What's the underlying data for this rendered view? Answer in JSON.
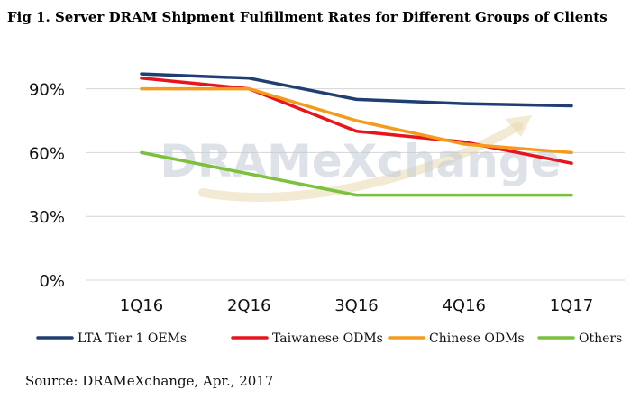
{
  "figure": {
    "title": "Fig 1. Server DRAM Shipment Fulfillment Rates for Different Groups of Clients",
    "source": "Source: DRAMeXchange, Apr., 2017",
    "watermark": "DRAMeXchange"
  },
  "chart_data": {
    "type": "line",
    "title": "Fig 1. Server DRAM Shipment Fulfillment Rates for Different Groups of Clients",
    "xlabel": "",
    "ylabel": "",
    "categories": [
      "1Q16",
      "2Q16",
      "3Q16",
      "4Q16",
      "1Q17"
    ],
    "ylim": [
      0,
      100
    ],
    "yticks": [
      0,
      30,
      60,
      90
    ],
    "ytick_labels": [
      "0%",
      "30%",
      "60%",
      "90%"
    ],
    "grid": true,
    "legend_position": "bottom",
    "series": [
      {
        "name": "LTA Tier 1 OEMs",
        "color": "#1f3f73",
        "values": [
          97,
          95,
          85,
          83,
          82
        ]
      },
      {
        "name": "Taiwanese ODMs",
        "color": "#e8141c",
        "values": [
          95,
          90,
          70,
          65,
          55
        ]
      },
      {
        "name": "Chinese ODMs",
        "color": "#f59a1c",
        "values": [
          90,
          90,
          75,
          64,
          60
        ]
      },
      {
        "name": "Others",
        "color": "#7cc13e",
        "values": [
          60,
          50,
          40,
          40,
          40
        ]
      }
    ]
  }
}
